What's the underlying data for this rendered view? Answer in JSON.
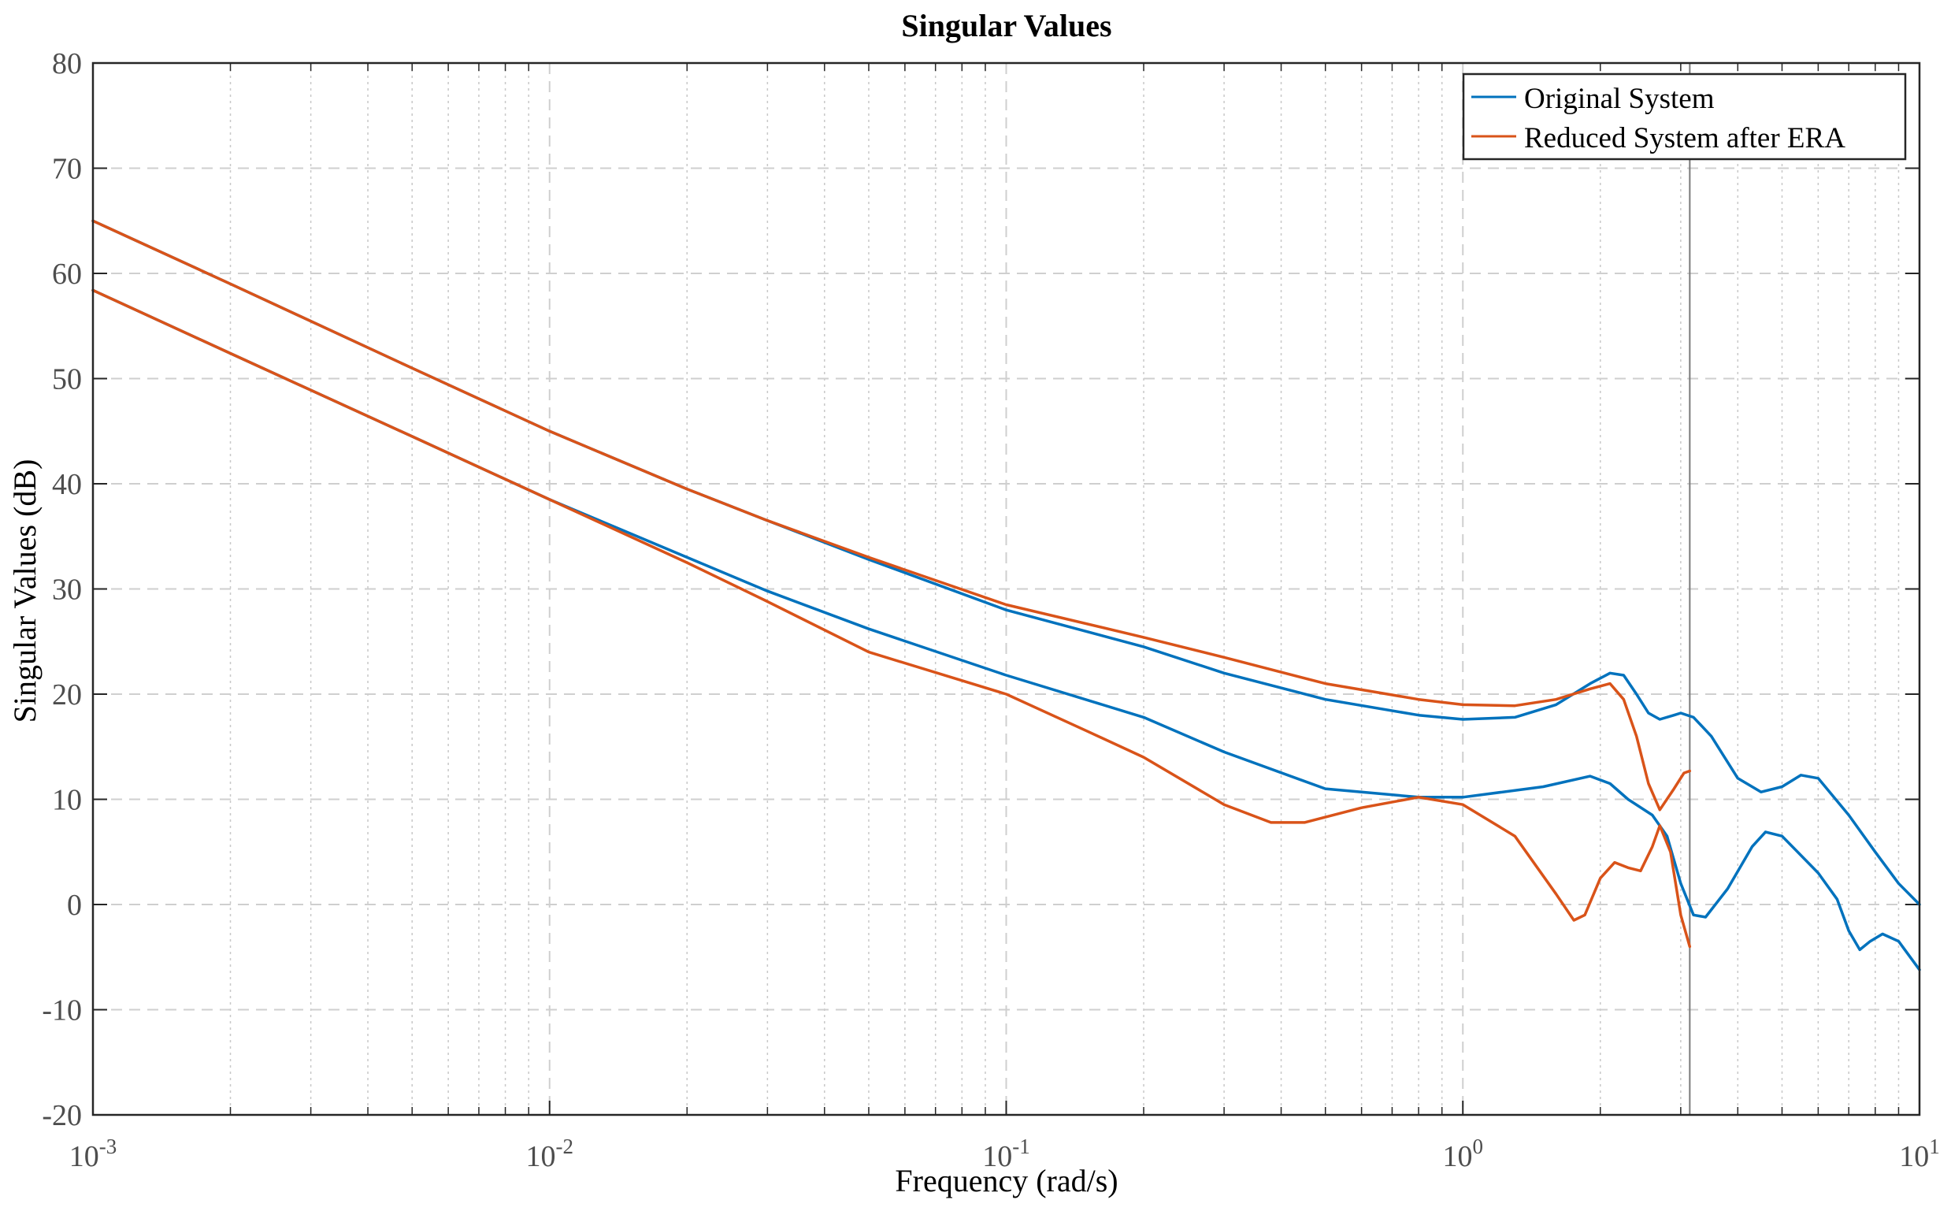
{
  "chart_data": {
    "type": "line",
    "title": "Singular Values",
    "xlabel": "Frequency (rad/s)",
    "ylabel": "Singular Values (dB)",
    "xscale": "log",
    "xlim": [
      0.001,
      10
    ],
    "ylim": [
      -20,
      80
    ],
    "grid": true,
    "legend_position": "top-right",
    "x_ticks": [
      {
        "value": 0.001,
        "base": "10",
        "exp": "-3"
      },
      {
        "value": 0.01,
        "base": "10",
        "exp": "-2"
      },
      {
        "value": 0.1,
        "base": "10",
        "exp": "-1"
      },
      {
        "value": 1,
        "base": "10",
        "exp": "0"
      },
      {
        "value": 10,
        "base": "10",
        "exp": "1"
      }
    ],
    "y_ticks": [
      {
        "value": 80,
        "label": "80"
      },
      {
        "value": 70,
        "label": "70"
      },
      {
        "value": 60,
        "label": "60"
      },
      {
        "value": 50,
        "label": "50"
      },
      {
        "value": 40,
        "label": "40"
      },
      {
        "value": 30,
        "label": "30"
      },
      {
        "value": 20,
        "label": "20"
      },
      {
        "value": 10,
        "label": "10"
      },
      {
        "value": 0,
        "label": "0"
      },
      {
        "value": -10,
        "label": "-10"
      },
      {
        "value": -20,
        "label": "-20"
      }
    ],
    "vertical_marker": 3.14,
    "legend": [
      {
        "label": "Original System",
        "color": "#0072BD"
      },
      {
        "label": "Reduced System after ERA",
        "color": "#D95319"
      }
    ],
    "series": [
      {
        "name": "Original System",
        "color": "#0072BD",
        "points": [
          [
            0.001,
            65.0
          ],
          [
            0.002,
            59.0
          ],
          [
            0.005,
            51.0
          ],
          [
            0.01,
            45.0
          ],
          [
            0.02,
            39.5
          ],
          [
            0.03,
            36.5
          ],
          [
            0.05,
            32.8
          ],
          [
            0.1,
            28.0
          ],
          [
            0.2,
            24.5
          ],
          [
            0.3,
            22.0
          ],
          [
            0.5,
            19.5
          ],
          [
            0.8,
            18.0
          ],
          [
            1.0,
            17.6
          ],
          [
            1.3,
            17.8
          ],
          [
            1.6,
            19.0
          ],
          [
            1.9,
            21.0
          ],
          [
            2.1,
            22.0
          ],
          [
            2.25,
            21.8
          ],
          [
            2.4,
            20.0
          ],
          [
            2.55,
            18.2
          ],
          [
            2.7,
            17.6
          ],
          [
            2.9,
            18.0
          ],
          [
            3.0,
            18.2
          ],
          [
            3.2,
            17.8
          ],
          [
            3.5,
            16.0
          ],
          [
            4.0,
            12.0
          ],
          [
            4.5,
            10.7
          ],
          [
            5.0,
            11.2
          ],
          [
            5.5,
            12.3
          ],
          [
            6.0,
            12.0
          ],
          [
            7.0,
            8.5
          ],
          [
            8.0,
            5.0
          ],
          [
            9.0,
            2.0
          ],
          [
            10.0,
            0.0
          ]
        ]
      },
      {
        "name": "Original System",
        "color": "#0072BD",
        "points": [
          [
            0.001,
            58.4
          ],
          [
            0.002,
            52.4
          ],
          [
            0.005,
            44.5
          ],
          [
            0.01,
            38.5
          ],
          [
            0.02,
            33.0
          ],
          [
            0.03,
            29.8
          ],
          [
            0.05,
            26.2
          ],
          [
            0.1,
            21.8
          ],
          [
            0.2,
            17.8
          ],
          [
            0.3,
            14.5
          ],
          [
            0.5,
            11.0
          ],
          [
            0.8,
            10.2
          ],
          [
            1.0,
            10.2
          ],
          [
            1.5,
            11.2
          ],
          [
            1.9,
            12.2
          ],
          [
            2.1,
            11.5
          ],
          [
            2.3,
            10.0
          ],
          [
            2.6,
            8.5
          ],
          [
            2.8,
            6.5
          ],
          [
            3.0,
            2.0
          ],
          [
            3.2,
            -1.0
          ],
          [
            3.4,
            -1.2
          ],
          [
            3.8,
            1.5
          ],
          [
            4.3,
            5.5
          ],
          [
            4.6,
            6.9
          ],
          [
            5.0,
            6.5
          ],
          [
            6.0,
            3.0
          ],
          [
            6.6,
            0.5
          ],
          [
            7.0,
            -2.5
          ],
          [
            7.4,
            -4.3
          ],
          [
            7.8,
            -3.5
          ],
          [
            8.3,
            -2.8
          ],
          [
            9.0,
            -3.5
          ],
          [
            10.0,
            -6.2
          ]
        ]
      },
      {
        "name": "Reduced System after ERA",
        "color": "#D95319",
        "points": [
          [
            0.001,
            65.0
          ],
          [
            0.002,
            59.0
          ],
          [
            0.005,
            51.0
          ],
          [
            0.01,
            45.0
          ],
          [
            0.02,
            39.5
          ],
          [
            0.03,
            36.5
          ],
          [
            0.05,
            33.0
          ],
          [
            0.1,
            28.5
          ],
          [
            0.2,
            25.4
          ],
          [
            0.3,
            23.5
          ],
          [
            0.5,
            21.0
          ],
          [
            0.8,
            19.5
          ],
          [
            1.0,
            19.0
          ],
          [
            1.3,
            18.9
          ],
          [
            1.6,
            19.5
          ],
          [
            1.9,
            20.5
          ],
          [
            2.1,
            21.0
          ],
          [
            2.25,
            19.5
          ],
          [
            2.4,
            16.0
          ],
          [
            2.55,
            11.5
          ],
          [
            2.7,
            9.0
          ],
          [
            2.9,
            11.0
          ],
          [
            3.05,
            12.5
          ],
          [
            3.14,
            12.7
          ]
        ]
      },
      {
        "name": "Reduced System after ERA",
        "color": "#D95319",
        "points": [
          [
            0.001,
            58.4
          ],
          [
            0.002,
            52.4
          ],
          [
            0.005,
            44.5
          ],
          [
            0.01,
            38.5
          ],
          [
            0.02,
            32.5
          ],
          [
            0.03,
            28.8
          ],
          [
            0.05,
            24.0
          ],
          [
            0.1,
            20.0
          ],
          [
            0.15,
            16.5
          ],
          [
            0.2,
            14.0
          ],
          [
            0.3,
            9.5
          ],
          [
            0.38,
            7.8
          ],
          [
            0.45,
            7.8
          ],
          [
            0.6,
            9.2
          ],
          [
            0.8,
            10.2
          ],
          [
            1.0,
            9.5
          ],
          [
            1.3,
            6.5
          ],
          [
            1.6,
            1.0
          ],
          [
            1.75,
            -1.5
          ],
          [
            1.85,
            -1.0
          ],
          [
            2.0,
            2.5
          ],
          [
            2.15,
            4.0
          ],
          [
            2.3,
            3.5
          ],
          [
            2.45,
            3.2
          ],
          [
            2.6,
            5.5
          ],
          [
            2.7,
            7.5
          ],
          [
            2.85,
            5.0
          ],
          [
            3.0,
            -1.0
          ],
          [
            3.14,
            -4.0
          ]
        ]
      }
    ]
  }
}
